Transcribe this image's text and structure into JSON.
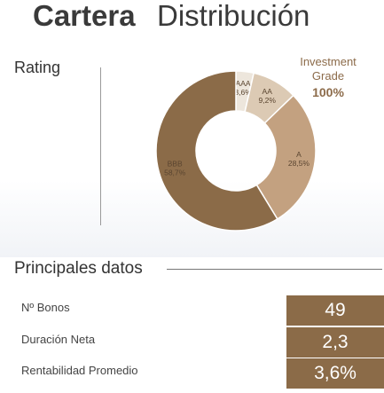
{
  "title": {
    "bold": "Cartera",
    "light": "Distribución"
  },
  "rating": {
    "label": "Rating"
  },
  "investment_grade": {
    "line1": "Investment",
    "line2": "Grade",
    "value": "100%"
  },
  "chart_data": {
    "type": "pie",
    "variant": "donut",
    "categories": [
      "AAA",
      "AA",
      "A",
      "BBB"
    ],
    "values": [
      3.6,
      9.2,
      28.5,
      58.7
    ],
    "value_labels": [
      "3,6%",
      "9,2%",
      "28,5%",
      "58,7%"
    ],
    "colors": [
      "#ede6dc",
      "#dccab4",
      "#c3a180",
      "#8b6b48"
    ]
  },
  "principales": {
    "title": "Principales datos",
    "rows": [
      {
        "label": "Nº Bonos",
        "value": "49"
      },
      {
        "label": "Duración Neta",
        "value": "2,3"
      },
      {
        "label": "Rentabilidad Promedio",
        "value": "3,6%"
      }
    ]
  }
}
